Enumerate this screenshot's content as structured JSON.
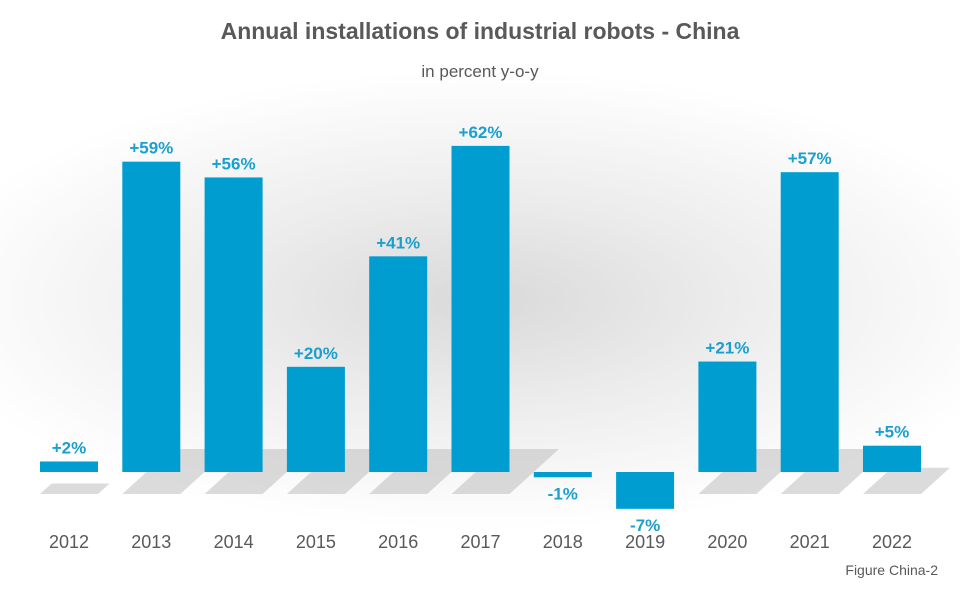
{
  "chart_data": {
    "type": "bar",
    "title": "Annual installations of industrial robots - China",
    "subtitle": "in percent y-o-y",
    "categories": [
      "2012",
      "2013",
      "2014",
      "2015",
      "2016",
      "2017",
      "2018",
      "2019",
      "2020",
      "2021",
      "2022"
    ],
    "values": [
      2,
      59,
      56,
      20,
      41,
      62,
      -1,
      -7,
      21,
      57,
      5
    ],
    "data_labels": [
      "+2%",
      "+59%",
      "+56%",
      "+20%",
      "+41%",
      "+62%",
      "-1%",
      "-7%",
      "+21%",
      "+57%",
      "+5%"
    ],
    "ylim": [
      -7,
      62
    ],
    "grid": false,
    "legend": "none",
    "bar_color": "#009ed0",
    "label_color": "#1a9fd0"
  },
  "caption": "Figure China-2"
}
